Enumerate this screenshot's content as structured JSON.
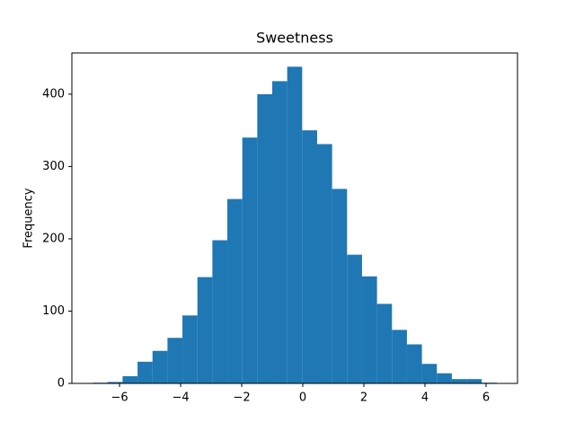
{
  "chart_data": {
    "type": "histogram",
    "title": "Sweetness",
    "ylabel": "Frequency",
    "color": "#1f77b4",
    "bins": [
      -6.88,
      -6.39,
      -5.9,
      -5.41,
      -4.92,
      -4.43,
      -3.94,
      -3.45,
      -2.96,
      -2.47,
      -1.98,
      -1.49,
      -1.0,
      -0.51,
      -0.02,
      0.47,
      0.96,
      1.45,
      1.94,
      2.43,
      2.92,
      3.41,
      3.9,
      4.39,
      4.88,
      5.37,
      5.86,
      6.35
    ],
    "values": [
      1,
      2,
      10,
      30,
      45,
      63,
      94,
      147,
      198,
      255,
      340,
      400,
      418,
      438,
      350,
      331,
      269,
      178,
      148,
      110,
      74,
      54,
      27,
      14,
      6,
      6,
      1
    ],
    "xlim": [
      -7.56,
      7.03
    ],
    "ylim": [
      0,
      457
    ],
    "xticks": [
      {
        "value": -6,
        "label": "−6"
      },
      {
        "value": -4,
        "label": "−4"
      },
      {
        "value": -2,
        "label": "−2"
      },
      0,
      2,
      4,
      6
    ],
    "yticks": [
      0,
      100,
      200,
      300,
      400
    ]
  }
}
